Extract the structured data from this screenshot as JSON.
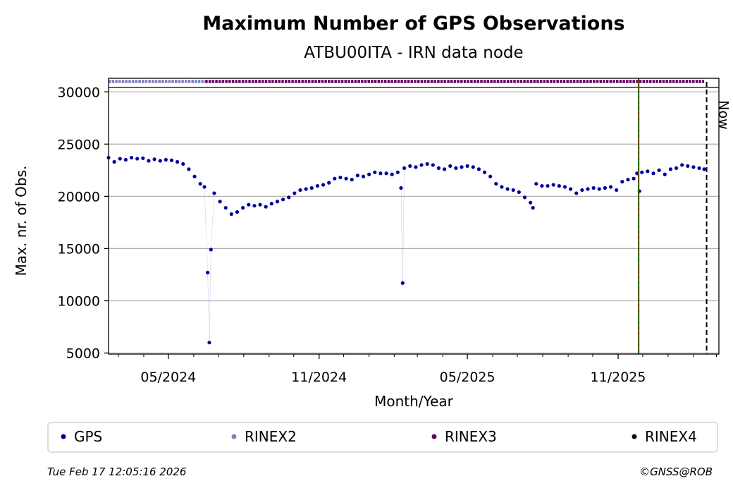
{
  "chart_data": {
    "type": "scatter",
    "title": "Maximum Number of GPS Observations",
    "subtitle": "ATBU00ITA - IRN data node",
    "xlabel": "Month/Year",
    "ylabel": "Max. nr. of Obs.",
    "x_tick_labels": [
      "05/2024",
      "11/2024",
      "05/2025",
      "11/2025"
    ],
    "y_tick_labels": [
      "5000",
      "10000",
      "15000",
      "20000",
      "25000",
      "30000"
    ],
    "y_ticks": [
      5000,
      10000,
      15000,
      20000,
      25000,
      30000
    ],
    "ylim": [
      4900,
      31300
    ],
    "xlim": [
      "2024-02-18",
      "2026-03-04"
    ],
    "grid": true,
    "legend_position": "bottom",
    "now_label": "Now",
    "now_date": "2026-02-17",
    "marker_line_date": "2025-11-26",
    "colors": {
      "gps": "#0000a0",
      "rinex2": "#7f7fbf",
      "rinex3": "#660066",
      "rinex4": "#1a0011",
      "marker_line": "#008000",
      "marker_line_dash": "#cc0000",
      "grid": "#b0b0b0"
    },
    "format_bands": [
      {
        "name": "RINEX2",
        "start": "2024-02-18",
        "end": "2024-06-15",
        "y": 31000
      },
      {
        "name": "RINEX3",
        "start": "2024-06-15",
        "end": "2026-02-14",
        "y": 31000
      }
    ],
    "series": [
      {
        "name": "GPS",
        "points": [
          [
            "2024-02-18",
            23700
          ],
          [
            "2024-02-25",
            23300
          ],
          [
            "2024-03-03",
            23600
          ],
          [
            "2024-03-10",
            23500
          ],
          [
            "2024-03-17",
            23700
          ],
          [
            "2024-03-24",
            23600
          ],
          [
            "2024-03-31",
            23650
          ],
          [
            "2024-04-07",
            23400
          ],
          [
            "2024-04-14",
            23550
          ],
          [
            "2024-04-21",
            23400
          ],
          [
            "2024-04-28",
            23500
          ],
          [
            "2024-05-05",
            23450
          ],
          [
            "2024-05-12",
            23300
          ],
          [
            "2024-05-19",
            23100
          ],
          [
            "2024-05-26",
            22600
          ],
          [
            "2024-06-02",
            21900
          ],
          [
            "2024-06-09",
            21200
          ],
          [
            "2024-06-14",
            20900
          ],
          [
            "2024-06-18",
            12700
          ],
          [
            "2024-06-20",
            6000
          ],
          [
            "2024-06-22",
            14900
          ],
          [
            "2024-06-26",
            20300
          ],
          [
            "2024-07-03",
            19500
          ],
          [
            "2024-07-10",
            18900
          ],
          [
            "2024-07-17",
            18300
          ],
          [
            "2024-07-24",
            18500
          ],
          [
            "2024-07-31",
            18900
          ],
          [
            "2024-08-07",
            19200
          ],
          [
            "2024-08-14",
            19100
          ],
          [
            "2024-08-21",
            19200
          ],
          [
            "2024-08-28",
            19000
          ],
          [
            "2024-09-04",
            19300
          ],
          [
            "2024-09-11",
            19500
          ],
          [
            "2024-09-18",
            19700
          ],
          [
            "2024-09-25",
            19900
          ],
          [
            "2024-10-02",
            20300
          ],
          [
            "2024-10-09",
            20600
          ],
          [
            "2024-10-16",
            20700
          ],
          [
            "2024-10-23",
            20800
          ],
          [
            "2024-10-30",
            21000
          ],
          [
            "2024-11-06",
            21100
          ],
          [
            "2024-11-13",
            21300
          ],
          [
            "2024-11-20",
            21700
          ],
          [
            "2024-11-27",
            21800
          ],
          [
            "2024-12-04",
            21700
          ],
          [
            "2024-12-11",
            21600
          ],
          [
            "2024-12-18",
            22000
          ],
          [
            "2024-12-25",
            21900
          ],
          [
            "2025-01-01",
            22100
          ],
          [
            "2025-01-08",
            22300
          ],
          [
            "2025-01-15",
            22200
          ],
          [
            "2025-01-22",
            22200
          ],
          [
            "2025-01-29",
            22100
          ],
          [
            "2025-02-05",
            22300
          ],
          [
            "2025-02-09",
            20800
          ],
          [
            "2025-02-11",
            11700
          ],
          [
            "2025-02-13",
            22700
          ],
          [
            "2025-02-20",
            22900
          ],
          [
            "2025-02-27",
            22800
          ],
          [
            "2025-03-06",
            23000
          ],
          [
            "2025-03-13",
            23100
          ],
          [
            "2025-03-20",
            23000
          ],
          [
            "2025-03-27",
            22700
          ],
          [
            "2025-04-03",
            22600
          ],
          [
            "2025-04-10",
            22900
          ],
          [
            "2025-04-17",
            22700
          ],
          [
            "2025-04-24",
            22800
          ],
          [
            "2025-05-01",
            22900
          ],
          [
            "2025-05-08",
            22800
          ],
          [
            "2025-05-15",
            22600
          ],
          [
            "2025-05-22",
            22300
          ],
          [
            "2025-05-29",
            21900
          ],
          [
            "2025-06-05",
            21200
          ],
          [
            "2025-06-12",
            20900
          ],
          [
            "2025-06-19",
            20700
          ],
          [
            "2025-06-26",
            20600
          ],
          [
            "2025-07-03",
            20400
          ],
          [
            "2025-07-10",
            19900
          ],
          [
            "2025-07-17",
            19400
          ],
          [
            "2025-07-20",
            18900
          ],
          [
            "2025-07-24",
            21200
          ],
          [
            "2025-07-31",
            21000
          ],
          [
            "2025-08-07",
            21000
          ],
          [
            "2025-08-14",
            21100
          ],
          [
            "2025-08-21",
            21000
          ],
          [
            "2025-08-28",
            20900
          ],
          [
            "2025-09-04",
            20700
          ],
          [
            "2025-09-11",
            20300
          ],
          [
            "2025-09-18",
            20600
          ],
          [
            "2025-09-25",
            20700
          ],
          [
            "2025-10-02",
            20800
          ],
          [
            "2025-10-09",
            20700
          ],
          [
            "2025-10-16",
            20800
          ],
          [
            "2025-10-23",
            20900
          ],
          [
            "2025-10-30",
            20600
          ],
          [
            "2025-11-06",
            21400
          ],
          [
            "2025-11-13",
            21600
          ],
          [
            "2025-11-20",
            21700
          ],
          [
            "2025-11-24",
            22200
          ],
          [
            "2025-11-27",
            20500
          ],
          [
            "2025-11-30",
            22300
          ],
          [
            "2025-12-07",
            22400
          ],
          [
            "2025-12-14",
            22200
          ],
          [
            "2025-12-21",
            22500
          ],
          [
            "2025-12-28",
            22100
          ],
          [
            "2026-01-04",
            22600
          ],
          [
            "2026-01-11",
            22700
          ],
          [
            "2026-01-18",
            23000
          ],
          [
            "2026-01-25",
            22900
          ],
          [
            "2026-02-01",
            22800
          ],
          [
            "2026-02-08",
            22700
          ],
          [
            "2026-02-14",
            22600
          ]
        ]
      },
      {
        "name": "RINEX2",
        "points": []
      },
      {
        "name": "RINEX3",
        "points": []
      },
      {
        "name": "RINEX4",
        "points": []
      }
    ]
  },
  "footer": {
    "timestamp": "Tue Feb 17 12:05:16 2026",
    "credit": "©GNSS@ROB"
  }
}
